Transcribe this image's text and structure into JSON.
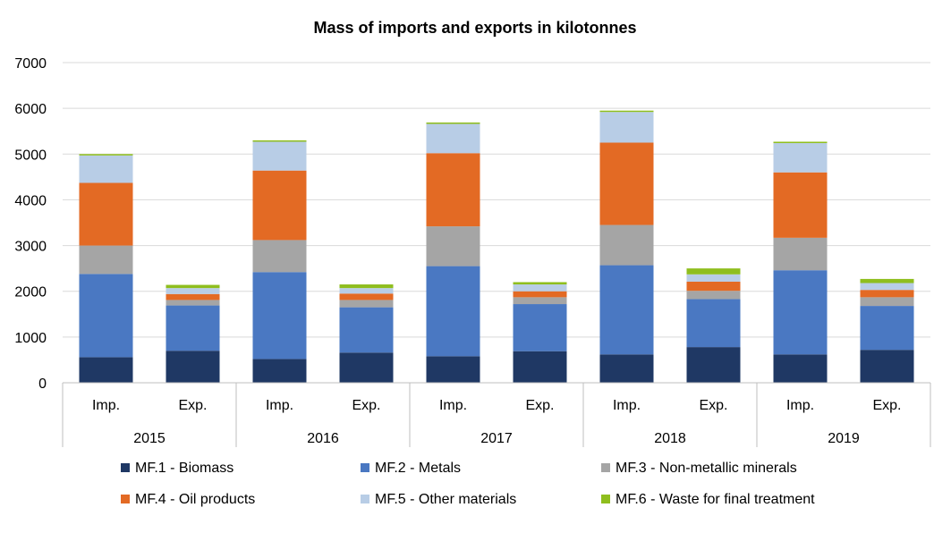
{
  "chart_data": {
    "type": "bar",
    "stacked": true,
    "title": "Mass of imports and exports in kilotonnes",
    "xlabel": "",
    "ylabel": "",
    "ylim": [
      0,
      7000
    ],
    "yticks": [
      0,
      1000,
      2000,
      3000,
      4000,
      5000,
      6000,
      7000
    ],
    "grid": true,
    "legend_position": "bottom",
    "groups": [
      "2015",
      "2016",
      "2017",
      "2018",
      "2019"
    ],
    "subcategories": [
      "Imp.",
      "Exp."
    ],
    "categories": [
      "2015 Imp.",
      "2015 Exp.",
      "2016 Imp.",
      "2016 Exp.",
      "2017 Imp.",
      "2017 Exp.",
      "2018 Imp.",
      "2018 Exp.",
      "2019 Imp.",
      "2019 Exp."
    ],
    "series": [
      {
        "name": "MF.1 - Biomass",
        "color": "#1f3864",
        "values": [
          560,
          700,
          520,
          660,
          580,
          690,
          620,
          780,
          620,
          720
        ]
      },
      {
        "name": "MF.2 - Metals",
        "color": "#4a78c2",
        "values": [
          1820,
          990,
          1900,
          990,
          1970,
          1030,
          1950,
          1050,
          1840,
          960
        ]
      },
      {
        "name": "MF.3 - Non-metallic minerals",
        "color": "#a5a5a5",
        "values": [
          620,
          120,
          700,
          160,
          870,
          150,
          880,
          180,
          710,
          190
        ]
      },
      {
        "name": "MF.4 - Oil products",
        "color": "#e36a24",
        "values": [
          1370,
          130,
          1520,
          140,
          1600,
          130,
          1800,
          200,
          1430,
          160
        ]
      },
      {
        "name": "MF.5 - Other materials",
        "color": "#b8cde6",
        "values": [
          600,
          130,
          630,
          120,
          640,
          150,
          670,
          160,
          640,
          150
        ]
      },
      {
        "name": "MF.6 - Waste for final treatment",
        "color": "#8fbe1e",
        "values": [
          30,
          70,
          30,
          80,
          30,
          50,
          30,
          130,
          30,
          90
        ]
      }
    ]
  }
}
